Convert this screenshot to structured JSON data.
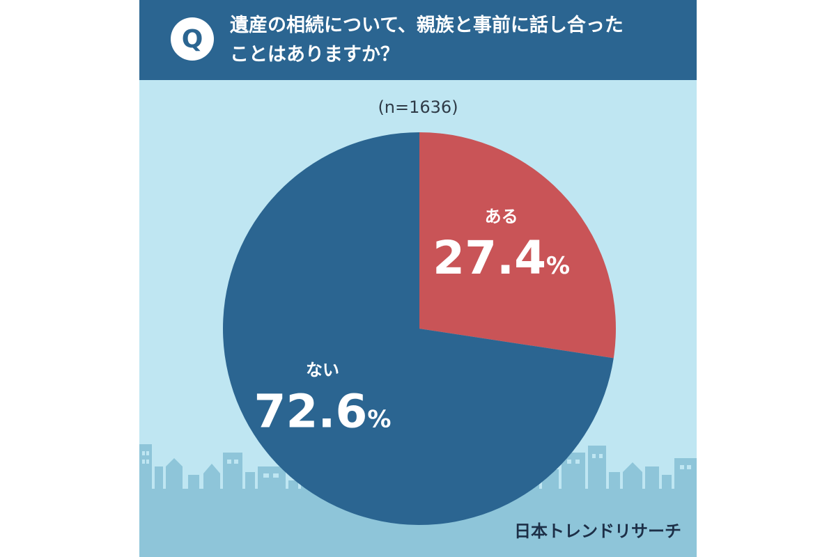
{
  "question": {
    "badge": "Q",
    "line1": "遺産の相続について、親族と事前に話し合った",
    "line2": "ことはありますか？"
  },
  "sample_size": "(n=1636)",
  "brand": "日本トレンドリサーチ",
  "colors": {
    "header": "#2b6591",
    "background": "#bfe6f2",
    "skyline": "#8ec5d9",
    "yes": "#c95457",
    "no": "#2b6591"
  },
  "chart_data": {
    "type": "pie",
    "categories": [
      "ある",
      "ない"
    ],
    "values": [
      27.4,
      72.6
    ],
    "value_labels": [
      "27.4",
      "72.6"
    ],
    "unit": "%",
    "start": "12 o'clock, clockwise"
  }
}
